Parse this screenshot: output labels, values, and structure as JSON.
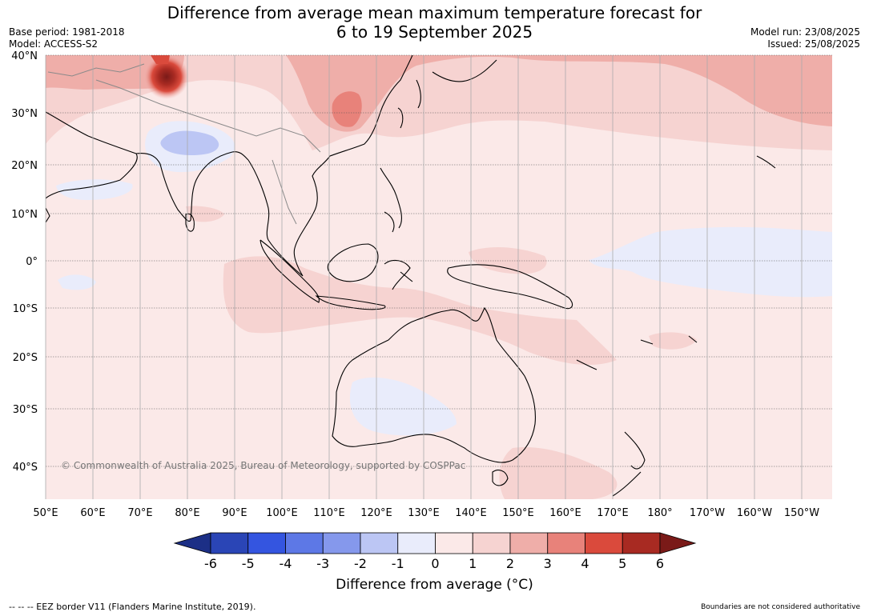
{
  "header": {
    "title_line1": "Difference from average mean maximum temperature forecast for",
    "title_line2": "6 to 19 September 2025",
    "base_period": "Base period: 1981-2018",
    "model": "Model: ACCESS-S2",
    "model_run": "Model run: 23/08/2025",
    "issued": "Issued: 25/08/2025"
  },
  "map": {
    "copyright": "© Commonwealth of Australia 2025, Bureau of Meteorology, supported by COSPPac",
    "lat_labels": [
      "40°N",
      "30°N",
      "20°N",
      "10°N",
      "0°",
      "10°S",
      "20°S",
      "30°S",
      "40°S"
    ],
    "lon_labels": [
      "50°E",
      "60°E",
      "70°E",
      "80°E",
      "90°E",
      "100°E",
      "110°E",
      "120°E",
      "130°E",
      "140°E",
      "150°E",
      "160°E",
      "170°E",
      "180°",
      "170°W",
      "160°W",
      "150°W"
    ]
  },
  "colorbar": {
    "ticks": [
      "-6",
      "-5",
      "-4",
      "-3",
      "-2",
      "-1",
      "0",
      "1",
      "2",
      "3",
      "4",
      "5",
      "6"
    ],
    "colors": [
      "#1c2f86",
      "#2a45b6",
      "#3455e0",
      "#5d78e6",
      "#8598ec",
      "#bcc6f4",
      "#e9ecfb",
      "#fbe9e8",
      "#f6d3d1",
      "#efaea9",
      "#e8827a",
      "#da4a3c",
      "#a82a22",
      "#7a1a18"
    ],
    "label": "Difference from average (°C)"
  },
  "footer": {
    "eez_note": "--  --  -- EEZ border V11 (Flanders Marine Institute, 2019).",
    "disclaimer": "Boundaries are not considered authoritative"
  }
}
